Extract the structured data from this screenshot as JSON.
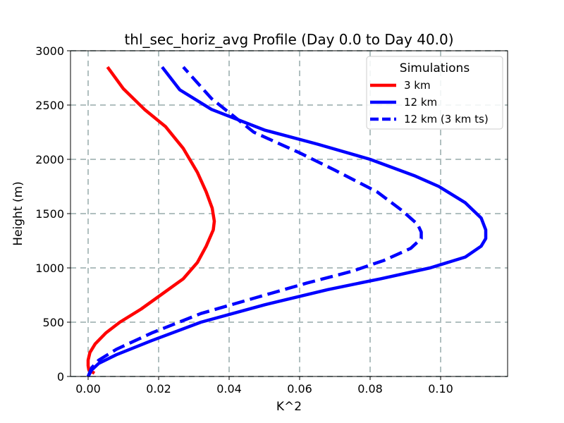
{
  "chart_data": {
    "type": "line",
    "title": "thl_sec_horiz_avg Profile (Day 0.0 to Day 40.0)",
    "xlabel": "K^2",
    "ylabel": "Height (m)",
    "xlim": [
      -0.005,
      0.119
    ],
    "ylim": [
      0,
      3000
    ],
    "xticks": [
      "0.00",
      "0.02",
      "0.04",
      "0.06",
      "0.08",
      "0.10"
    ],
    "xtick_values": [
      0.0,
      0.02,
      0.04,
      0.06,
      0.08,
      0.1
    ],
    "yticks": [
      "0",
      "500",
      "1000",
      "1500",
      "2000",
      "2500",
      "3000"
    ],
    "ytick_values": [
      0,
      500,
      1000,
      1500,
      2000,
      2500,
      3000
    ],
    "grid": true,
    "legend": {
      "title": "Simulations",
      "placement": "upper right"
    },
    "series": [
      {
        "name": "3 km",
        "color": "#ff0000",
        "style": "solid",
        "x": [
          0.0018,
          0.0002,
          0.0,
          0.0,
          0.0005,
          0.002,
          0.005,
          0.009,
          0.015,
          0.021,
          0.027,
          0.031,
          0.0335,
          0.0355,
          0.0358,
          0.0352,
          0.0335,
          0.031,
          0.027,
          0.022,
          0.016,
          0.01,
          0.0055
        ],
        "y": [
          30,
          60,
          100,
          150,
          220,
          300,
          400,
          500,
          620,
          760,
          900,
          1050,
          1200,
          1350,
          1430,
          1550,
          1700,
          1880,
          2100,
          2300,
          2460,
          2650,
          2850
        ]
      },
      {
        "name": "12 km",
        "color": "#0000ff",
        "style": "solid",
        "x": [
          0.0,
          0.001,
          0.003,
          0.008,
          0.018,
          0.032,
          0.05,
          0.068,
          0.083,
          0.097,
          0.107,
          0.1115,
          0.1128,
          0.1128,
          0.1115,
          0.107,
          0.0995,
          0.0925,
          0.08,
          0.065,
          0.05,
          0.035,
          0.026,
          0.021
        ],
        "y": [
          0,
          60,
          120,
          200,
          330,
          500,
          660,
          800,
          900,
          1000,
          1100,
          1200,
          1270,
          1350,
          1460,
          1600,
          1750,
          1850,
          2000,
          2140,
          2270,
          2460,
          2640,
          2850
        ]
      },
      {
        "name": "12 km (3 km ts)",
        "color": "#0000ff",
        "style": "dashed",
        "x": [
          0.0,
          0.001,
          0.003,
          0.008,
          0.018,
          0.032,
          0.048,
          0.062,
          0.075,
          0.084,
          0.0915,
          0.0945,
          0.0945,
          0.0935,
          0.089,
          0.082,
          0.07,
          0.06,
          0.047,
          0.035,
          0.027
        ],
        "y": [
          0,
          80,
          150,
          250,
          400,
          580,
          730,
          860,
          970,
          1070,
          1180,
          1270,
          1330,
          1400,
          1530,
          1700,
          1900,
          2060,
          2250,
          2560,
          2850
        ]
      }
    ]
  }
}
